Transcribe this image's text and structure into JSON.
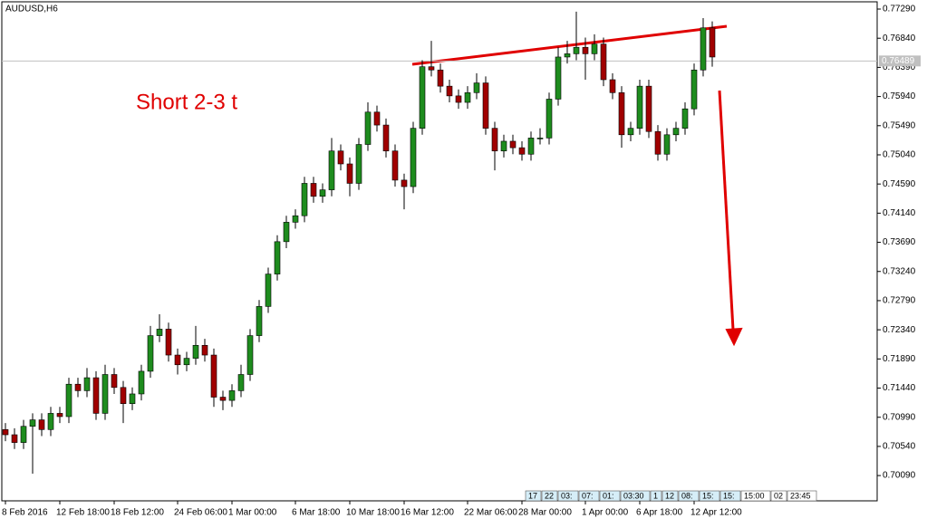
{
  "chart_data": {
    "type": "candlestick",
    "title": "AUDUSD,H6",
    "annotation": "Short 2-3 t",
    "categories": [
      "8 Feb 2016",
      null,
      null,
      null,
      null,
      null,
      "12 Feb 18:00",
      null,
      null,
      null,
      null,
      null,
      "18 Feb 12:00",
      null,
      null,
      null,
      null,
      null,
      null,
      "24 Feb 06:00",
      null,
      null,
      null,
      null,
      null,
      "1 Mar 00:00",
      null,
      null,
      null,
      null,
      null,
      null,
      "6 Mar 18:00",
      null,
      null,
      null,
      null,
      null,
      "10 Mar 18:00",
      null,
      null,
      null,
      null,
      null,
      "16 Mar 12:00",
      null,
      null,
      null,
      null,
      null,
      null,
      "22 Mar 06:00",
      null,
      null,
      null,
      null,
      null,
      "28 Mar 00:00",
      null,
      null,
      null,
      null,
      null,
      null,
      "1 Apr 00:00",
      null,
      null,
      null,
      null,
      null,
      "6 Apr 18:00",
      null,
      null,
      null,
      null,
      null,
      "12 Apr 12:00",
      null,
      null
    ],
    "open": [
      0.708,
      0.7072,
      0.706,
      0.7085,
      0.7095,
      0.708,
      0.7105,
      0.71,
      0.715,
      0.714,
      0.716,
      0.7105,
      0.7165,
      0.7145,
      0.712,
      0.7135,
      0.717,
      0.7225,
      0.7235,
      0.7195,
      0.718,
      0.719,
      0.721,
      0.7195,
      0.713,
      0.7125,
      0.714,
      0.7165,
      0.7225,
      0.727,
      0.732,
      0.737,
      0.74,
      0.741,
      0.746,
      0.744,
      0.745,
      0.751,
      0.749,
      0.746,
      0.752,
      0.757,
      0.755,
      0.751,
      0.7465,
      0.7455,
      0.7545,
      0.764,
      0.7635,
      0.761,
      0.7595,
      0.7585,
      0.76,
      0.7615,
      0.7545,
      0.751,
      0.7525,
      0.7515,
      0.7505,
      0.753,
      0.753,
      0.759,
      0.7655,
      0.766,
      0.767,
      0.766,
      0.7675,
      0.762,
      0.76,
      0.7535,
      0.7545,
      0.761,
      0.754,
      0.7505,
      0.7535,
      0.7545,
      0.7575,
      0.7635,
      0.77
    ],
    "high": [
      0.709,
      0.7082,
      0.7095,
      0.7105,
      0.7105,
      0.7115,
      0.7115,
      0.716,
      0.716,
      0.7175,
      0.717,
      0.718,
      0.7175,
      0.7155,
      0.7145,
      0.718,
      0.724,
      0.7258,
      0.7245,
      0.7205,
      0.72,
      0.724,
      0.722,
      0.7205,
      0.714,
      0.715,
      0.718,
      0.7235,
      0.728,
      0.733,
      0.738,
      0.741,
      0.742,
      0.747,
      0.747,
      0.746,
      0.753,
      0.752,
      0.75,
      0.753,
      0.7585,
      0.758,
      0.756,
      0.752,
      0.7475,
      0.7555,
      0.765,
      0.768,
      0.7645,
      0.762,
      0.7605,
      0.761,
      0.763,
      0.7625,
      0.7555,
      0.7535,
      0.7535,
      0.7525,
      0.754,
      0.7545,
      0.76,
      0.767,
      0.768,
      0.7725,
      0.7685,
      0.769,
      0.7685,
      0.763,
      0.761,
      0.7555,
      0.762,
      0.762,
      0.755,
      0.7545,
      0.7555,
      0.7585,
      0.7645,
      0.7715,
      0.771
    ],
    "low": [
      0.7062,
      0.705,
      0.705,
      0.7012,
      0.707,
      0.707,
      0.709,
      0.709,
      0.713,
      0.713,
      0.7095,
      0.7095,
      0.7135,
      0.709,
      0.711,
      0.7125,
      0.716,
      0.7215,
      0.7185,
      0.7165,
      0.717,
      0.718,
      0.7185,
      0.7115,
      0.711,
      0.7115,
      0.713,
      0.7155,
      0.7215,
      0.726,
      0.731,
      0.736,
      0.739,
      0.74,
      0.743,
      0.743,
      0.744,
      0.748,
      0.744,
      0.745,
      0.751,
      0.754,
      0.75,
      0.7455,
      0.742,
      0.7445,
      0.7535,
      0.7625,
      0.76,
      0.7585,
      0.7575,
      0.7575,
      0.759,
      0.7535,
      0.748,
      0.75,
      0.7505,
      0.7495,
      0.7495,
      0.752,
      0.752,
      0.758,
      0.7645,
      0.765,
      0.762,
      0.765,
      0.761,
      0.759,
      0.7515,
      0.7525,
      0.7535,
      0.753,
      0.7495,
      0.7495,
      0.7525,
      0.7535,
      0.7565,
      0.7625,
      0.764
    ],
    "close": [
      0.7072,
      0.706,
      0.7085,
      0.7095,
      0.708,
      0.7105,
      0.71,
      0.715,
      0.714,
      0.716,
      0.7105,
      0.7165,
      0.7145,
      0.712,
      0.7135,
      0.717,
      0.7225,
      0.7235,
      0.7195,
      0.718,
      0.719,
      0.721,
      0.7195,
      0.713,
      0.7125,
      0.714,
      0.7165,
      0.7225,
      0.727,
      0.732,
      0.737,
      0.74,
      0.741,
      0.746,
      0.744,
      0.745,
      0.751,
      0.749,
      0.746,
      0.752,
      0.757,
      0.755,
      0.751,
      0.7465,
      0.7455,
      0.7545,
      0.764,
      0.7635,
      0.761,
      0.7595,
      0.7585,
      0.76,
      0.7615,
      0.7545,
      0.751,
      0.7525,
      0.7515,
      0.7505,
      0.753,
      0.753,
      0.759,
      0.7655,
      0.766,
      0.767,
      0.766,
      0.7675,
      0.762,
      0.76,
      0.7535,
      0.7545,
      0.761,
      0.754,
      0.7505,
      0.7535,
      0.7545,
      0.7575,
      0.7635,
      0.77,
      0.7655
    ],
    "up_color": "#1e8c1e",
    "down_color": "#a00000",
    "ylim": [
      0.697,
      0.7743
    ],
    "yticks": [
      {
        "value": 0.7729,
        "label": "0.77290"
      },
      {
        "value": 0.7684,
        "label": "0.76840"
      },
      {
        "value": 0.7639,
        "label": "0.76390"
      },
      {
        "value": 0.7594,
        "label": "0.75940"
      },
      {
        "value": 0.7549,
        "label": "0.75490"
      },
      {
        "value": 0.7504,
        "label": "0.75040"
      },
      {
        "value": 0.7459,
        "label": "0.74590"
      },
      {
        "value": 0.7414,
        "label": "0.74140"
      },
      {
        "value": 0.7369,
        "label": "0.73690"
      },
      {
        "value": 0.7324,
        "label": "0.73240"
      },
      {
        "value": 0.7279,
        "label": "0.72790"
      },
      {
        "value": 0.7234,
        "label": "0.72340"
      },
      {
        "value": 0.7189,
        "label": "0.71890"
      },
      {
        "value": 0.7144,
        "label": "0.71440"
      },
      {
        "value": 0.7099,
        "label": "0.70990"
      },
      {
        "value": 0.7054,
        "label": "0.70540"
      },
      {
        "value": 0.7009,
        "label": "0.70090"
      }
    ],
    "bid": 0.76489,
    "period_bar": [
      "17",
      "22",
      "03:",
      "07:",
      "01:",
      "03:30",
      "1",
      "12",
      "08:",
      "15:",
      "15:",
      "15:00",
      "02",
      "23:45"
    ]
  }
}
